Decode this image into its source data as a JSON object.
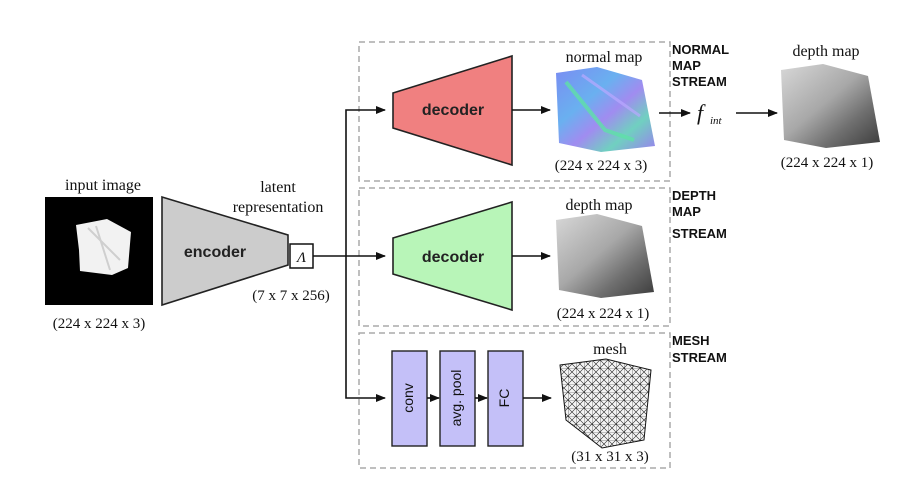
{
  "input": {
    "label": "input image",
    "dims": "(224 x 224 x 3)"
  },
  "encoder": {
    "label": "encoder"
  },
  "latent": {
    "label_line1": "latent",
    "label_line2": "representation",
    "symbol": "Λ",
    "dims": "(7 x 7 x 256)"
  },
  "normal_stream": {
    "decoder_label": "decoder",
    "output_label": "normal map",
    "output_dims": "(224 x 224 x 3)",
    "stream_title": [
      "NORMAL",
      "MAP",
      "STREAM"
    ],
    "integration_symbol": "f",
    "integration_subscript": "int",
    "final_label": "depth map",
    "final_dims": "(224 x 224 x 1)"
  },
  "depth_stream": {
    "decoder_label": "decoder",
    "output_label": "depth map",
    "output_dims": "(224 x 224 x 1)",
    "stream_title": [
      "DEPTH",
      "MAP",
      "STREAM"
    ]
  },
  "mesh_stream": {
    "layers": [
      "conv",
      "avg. pool",
      "FC"
    ],
    "output_label": "mesh",
    "output_dims": "(31 x 31 x 3)",
    "stream_title": [
      "MESH",
      "STREAM"
    ]
  },
  "colors": {
    "encoder_fill": "#cccccc",
    "normal_decoder_fill": "#f08080",
    "depth_decoder_fill": "#b8f5b8",
    "layer_fill": "#c4c0f8",
    "dashed_box": "#aaaaaa"
  }
}
